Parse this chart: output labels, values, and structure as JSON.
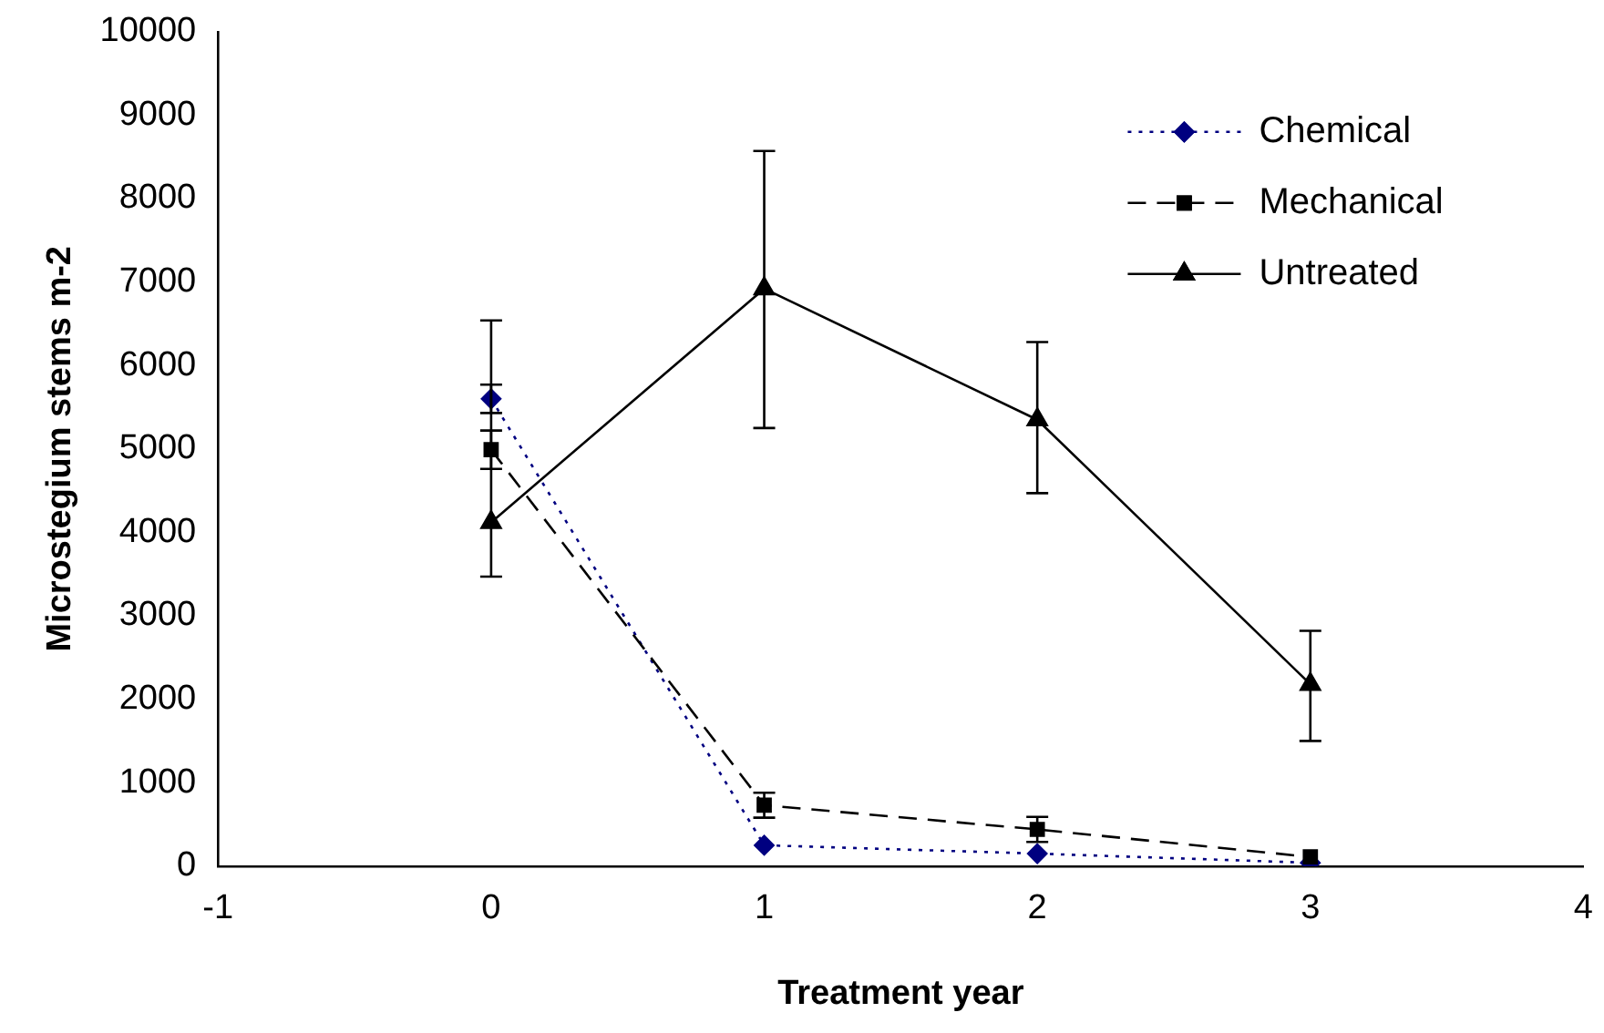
{
  "chart_data": {
    "type": "line",
    "xlabel": "Treatment year",
    "ylabel": "Microstegium stems m-2",
    "x": [
      0,
      1,
      2,
      3
    ],
    "series": [
      {
        "name": "Chemical",
        "color": "#000080",
        "marker": "diamond",
        "line_style": "dotted",
        "values": [
          5600,
          250,
          150,
          40
        ],
        "errors": [
          170,
          null,
          null,
          null
        ]
      },
      {
        "name": "Mechanical",
        "color": "#000000",
        "marker": "square",
        "line_style": "dashed",
        "values": [
          4990,
          730,
          440,
          110
        ],
        "errors": [
          230,
          150,
          150,
          null
        ]
      },
      {
        "name": "Untreated",
        "color": "#000000",
        "marker": "triangle",
        "line_style": "solid",
        "values": [
          4120,
          6920,
          5350,
          2180
        ],
        "errors": [
          [
            3470,
            6540
          ],
          [
            5250,
            8570
          ],
          [
            4470,
            6280
          ],
          [
            1500,
            2820
          ]
        ]
      }
    ],
    "xlim": [
      -1,
      4
    ],
    "xticks": [
      -1,
      0,
      1,
      2,
      3,
      4
    ],
    "ylim": [
      0,
      10000
    ],
    "yticks": [
      0,
      1000,
      2000,
      3000,
      4000,
      5000,
      6000,
      7000,
      8000,
      9000,
      10000
    ],
    "grid": false,
    "legend": "top right"
  }
}
